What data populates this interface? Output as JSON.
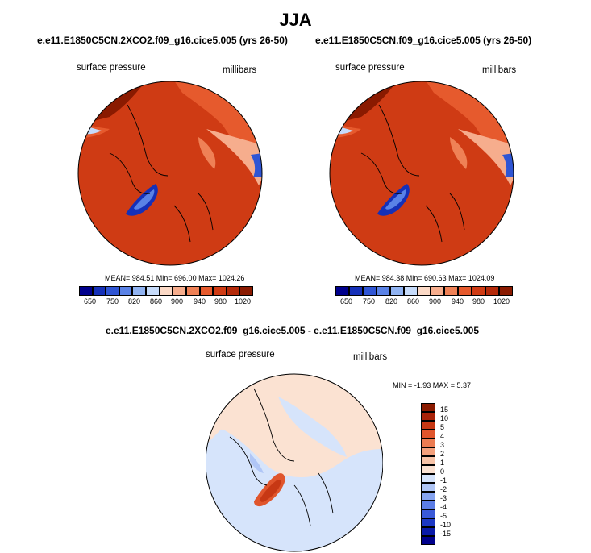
{
  "figure": {
    "title": "JJA"
  },
  "panels": [
    {
      "title": "e.e11.E1850C5CN.2XCO2.f09_g16.cice5.005 (yrs 26-50)",
      "variable": "surface pressure",
      "units": "millibars",
      "stats": "MEAN= 984.51   Min= 696.00   Max= 1024.26"
    },
    {
      "title": "e.e11.E1850C5CN.f09_g16.cice5.005 (yrs 26-50)",
      "variable": "surface pressure",
      "units": "millibars",
      "stats": "MEAN= 984.38   Min= 690.63   Max= 1024.09"
    },
    {
      "title": "e.e11.E1850C5CN.2XCO2.f09_g16.cice5.005 - e.e11.E1850C5CN.f09_g16.cice5.005",
      "variable": "surface pressure",
      "units": "millibars",
      "stats": "MIN =  -1.93 MAX =   5.37"
    }
  ],
  "colors": {
    "blues": [
      "#00008c",
      "#1530b8",
      "#2f55d4",
      "#5a82e6",
      "#90b3f2",
      "#c6dbfa"
    ],
    "reds": [
      "#fbd9c6",
      "#f6ad8d",
      "#ef8156",
      "#e65a2d",
      "#cf3b14",
      "#b42a0a",
      "#8a1a00"
    ],
    "diff_blues": [
      "#00008c",
      "#0a1aa8",
      "#1c38c4",
      "#3a5ad8",
      "#5c7de6",
      "#86a4f0",
      "#b0c6f6",
      "#d6e4fb"
    ],
    "diff_reds": [
      "#fbe2d2",
      "#f8c4a8",
      "#f3a07c",
      "#ec7c52",
      "#e0552c",
      "#c73814",
      "#a82208",
      "#8a1a00"
    ]
  },
  "chart_data": [
    {
      "type": "heatmap",
      "title": "e.e11.E1850C5CN.2XCO2.f09_g16.cice5.005 (yrs 26-50)",
      "variable": "surface pressure",
      "units": "millibars",
      "projection": "north polar stereographic",
      "mean": 984.51,
      "min": 696.0,
      "max": 1024.26,
      "colorbar_ticks": [
        "650",
        "750",
        "820",
        "860",
        "900",
        "940",
        "980",
        "1020"
      ]
    },
    {
      "type": "heatmap",
      "title": "e.e11.E1850C5CN.f09_g16.cice5.005 (yrs 26-50)",
      "variable": "surface pressure",
      "units": "millibars",
      "projection": "north polar stereographic",
      "mean": 984.38,
      "min": 690.63,
      "max": 1024.09,
      "colorbar_ticks": [
        "650",
        "750",
        "820",
        "860",
        "900",
        "940",
        "980",
        "1020"
      ]
    },
    {
      "type": "heatmap",
      "title": "e.e11.E1850C5CN.2XCO2.f09_g16.cice5.005 - e.e11.E1850C5CN.f09_g16.cice5.005",
      "variable": "surface pressure",
      "units": "millibars",
      "projection": "north polar stereographic",
      "min": -1.93,
      "max": 5.37,
      "colorbar_ticks": [
        "15",
        "10",
        "5",
        "4",
        "3",
        "2",
        "1",
        "0",
        "-1",
        "-2",
        "-3",
        "-4",
        "-5",
        "-10",
        "-15"
      ]
    }
  ]
}
